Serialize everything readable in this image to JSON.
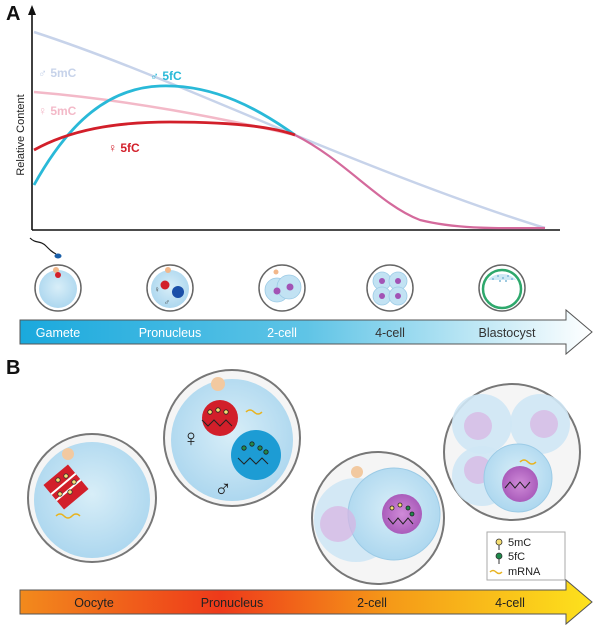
{
  "panel_a": {
    "letter": "A",
    "y_axis_label": "Relative Content",
    "curves": [
      {
        "label": "♂ 5mC",
        "color": "#c7d3ea"
      },
      {
        "label": "♂ 5fC",
        "color": "#29b9d8"
      },
      {
        "label": "♀ 5mC",
        "color": "#f3b9c8"
      },
      {
        "label": "♀ 5fC",
        "color": "#d21f2a"
      }
    ],
    "merged_curve_color": "#d46a9c",
    "stages": [
      "Gamete",
      "Pronucleus",
      "2-cell",
      "4-cell",
      "Blastocyst"
    ]
  },
  "panel_b": {
    "letter": "B",
    "stages": [
      "Oocyte",
      "Pronucleus",
      "2-cell",
      "4-cell"
    ],
    "pronucleus_symbols": {
      "female": "♀",
      "male": "♂"
    },
    "legend": [
      {
        "label": "5mC",
        "color": "#f6df72"
      },
      {
        "label": "5fC",
        "color": "#1f8a4c"
      },
      {
        "label": "mRNA",
        "color": "#e8b320"
      }
    ]
  }
}
